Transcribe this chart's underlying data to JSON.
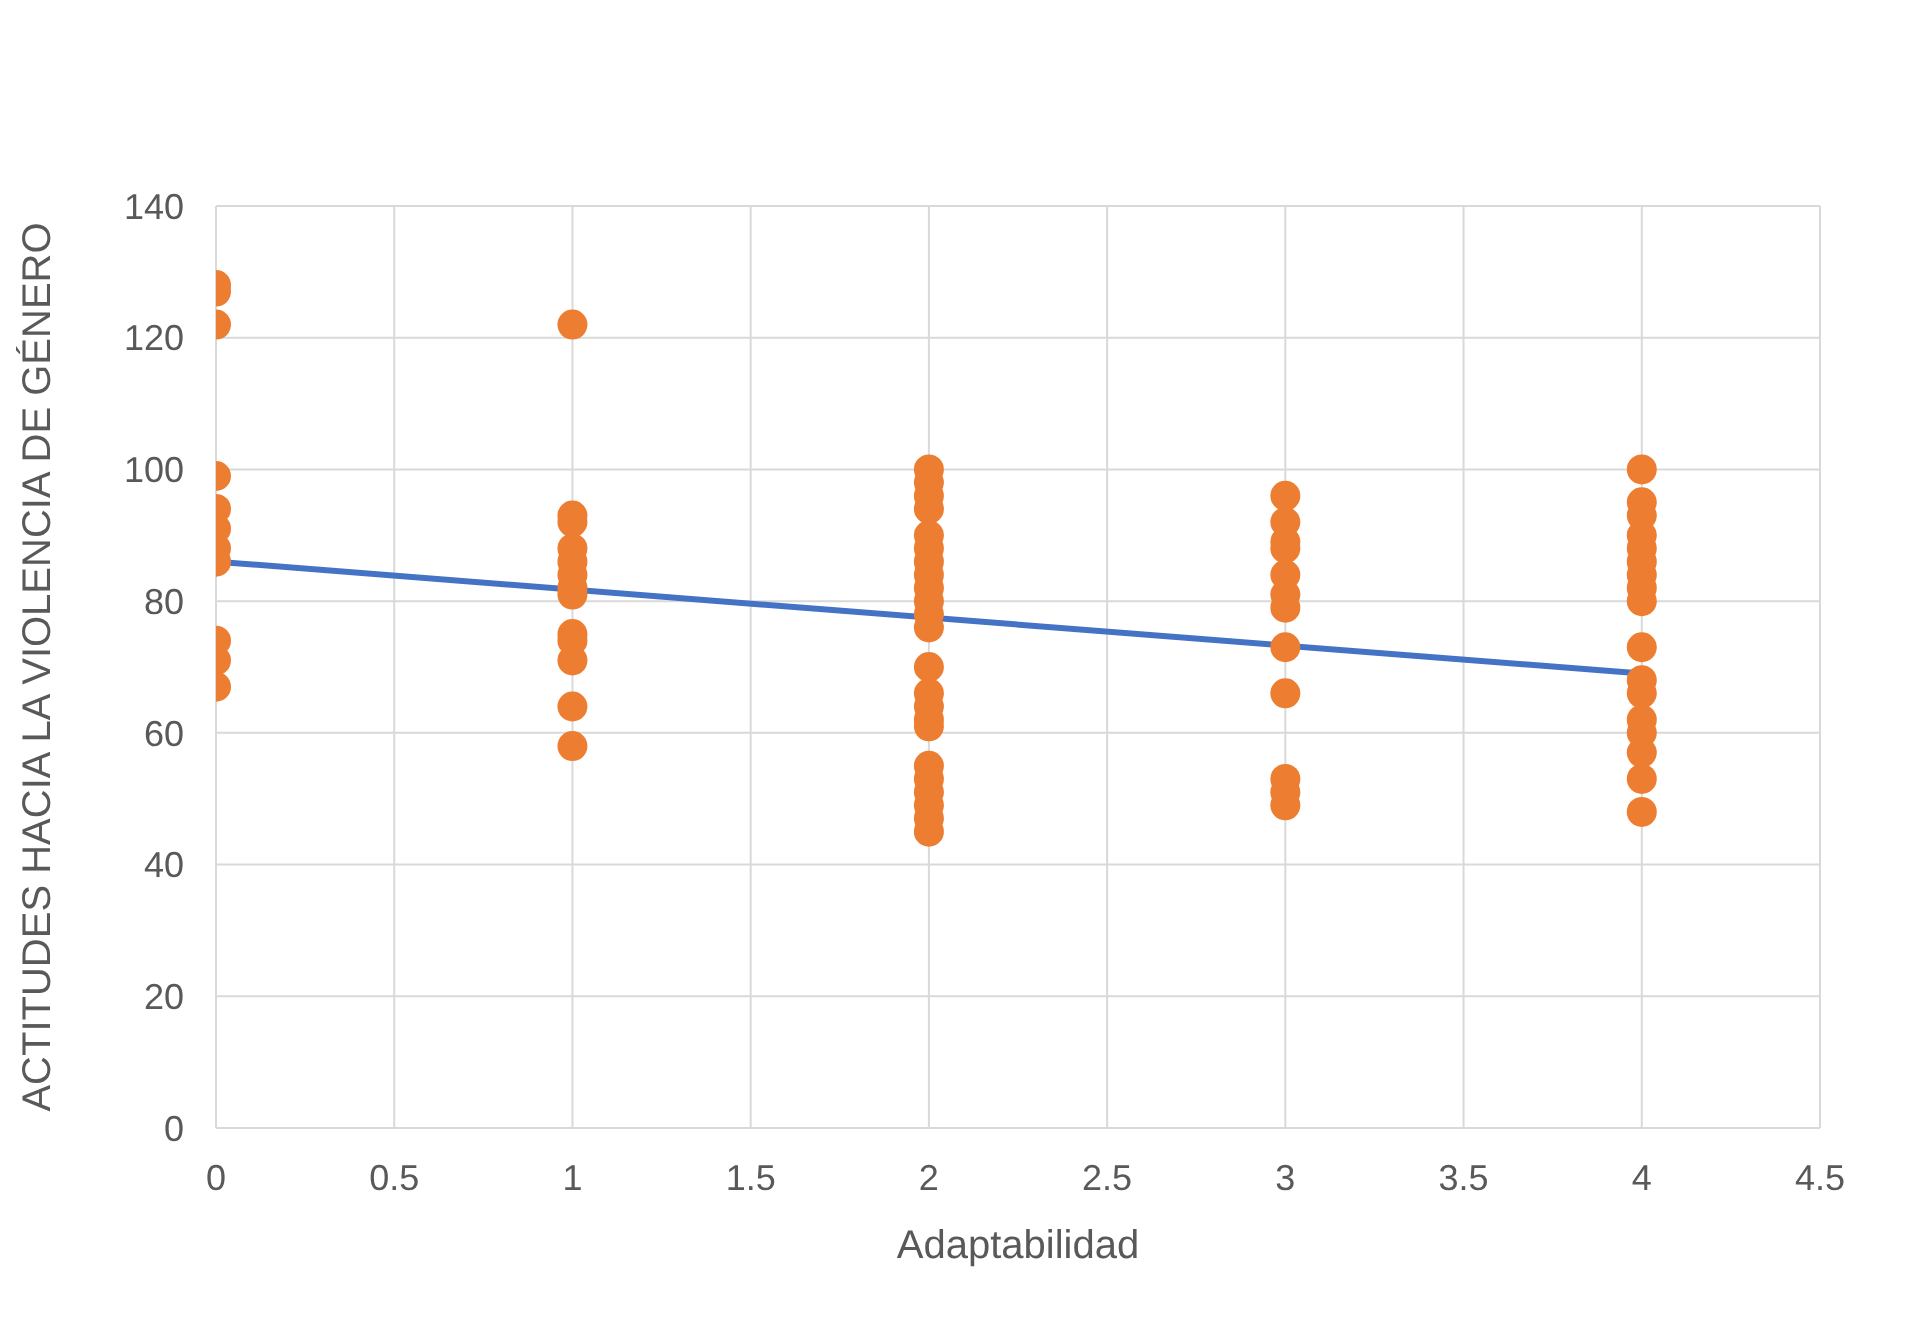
{
  "chart_data": {
    "type": "scatter",
    "xlabel": "Adaptabilidad",
    "ylabel": "ACTITUDES HACIA LA VIOLENCIA DE GÉNERO",
    "xlim": [
      0,
      4.5
    ],
    "xticks": [
      0,
      0.5,
      1,
      1.5,
      2,
      2.5,
      3,
      3.5,
      4,
      4.5
    ],
    "ylim": [
      0,
      140
    ],
    "yticks": [
      0,
      20,
      40,
      60,
      80,
      100,
      120,
      140
    ],
    "grid": true,
    "marker": "circle",
    "series": [
      {
        "type": "scatter",
        "color": "#ed7d31",
        "x": [
          0,
          0,
          0,
          0,
          0,
          0,
          0,
          0,
          0,
          0,
          0,
          1,
          1,
          1,
          1,
          1,
          1,
          1,
          1,
          1,
          1,
          1,
          1,
          1,
          2,
          2,
          2,
          2,
          2,
          2,
          2,
          2,
          2,
          2,
          2,
          2,
          2,
          2,
          2,
          2,
          2,
          2,
          2,
          2,
          2,
          2,
          2,
          3,
          3,
          3,
          3,
          3,
          3,
          3,
          3,
          3,
          3,
          3,
          3,
          4,
          4,
          4,
          4,
          4,
          4,
          4,
          4,
          4,
          4,
          4,
          4,
          4,
          4,
          4,
          4,
          4
        ],
        "values": [
          128,
          127,
          122,
          99,
          94,
          91,
          88,
          86,
          74,
          71,
          67,
          122,
          93,
          92,
          88,
          86,
          84,
          82,
          81,
          75,
          74,
          71,
          64,
          58,
          100,
          98,
          96,
          94,
          90,
          88,
          86,
          84,
          82,
          80,
          78,
          76,
          70,
          66,
          64,
          62,
          61,
          55,
          53,
          51,
          49,
          47,
          45,
          96,
          92,
          89,
          88,
          84,
          81,
          79,
          73,
          66,
          53,
          51,
          49,
          100,
          95,
          93,
          90,
          88,
          86,
          84,
          82,
          80,
          73,
          68,
          66,
          62,
          60,
          57,
          53,
          48
        ]
      },
      {
        "type": "line",
        "color": "#4472c4",
        "x": [
          0,
          4
        ],
        "values": [
          86,
          69
        ],
        "marker": "none"
      }
    ]
  }
}
